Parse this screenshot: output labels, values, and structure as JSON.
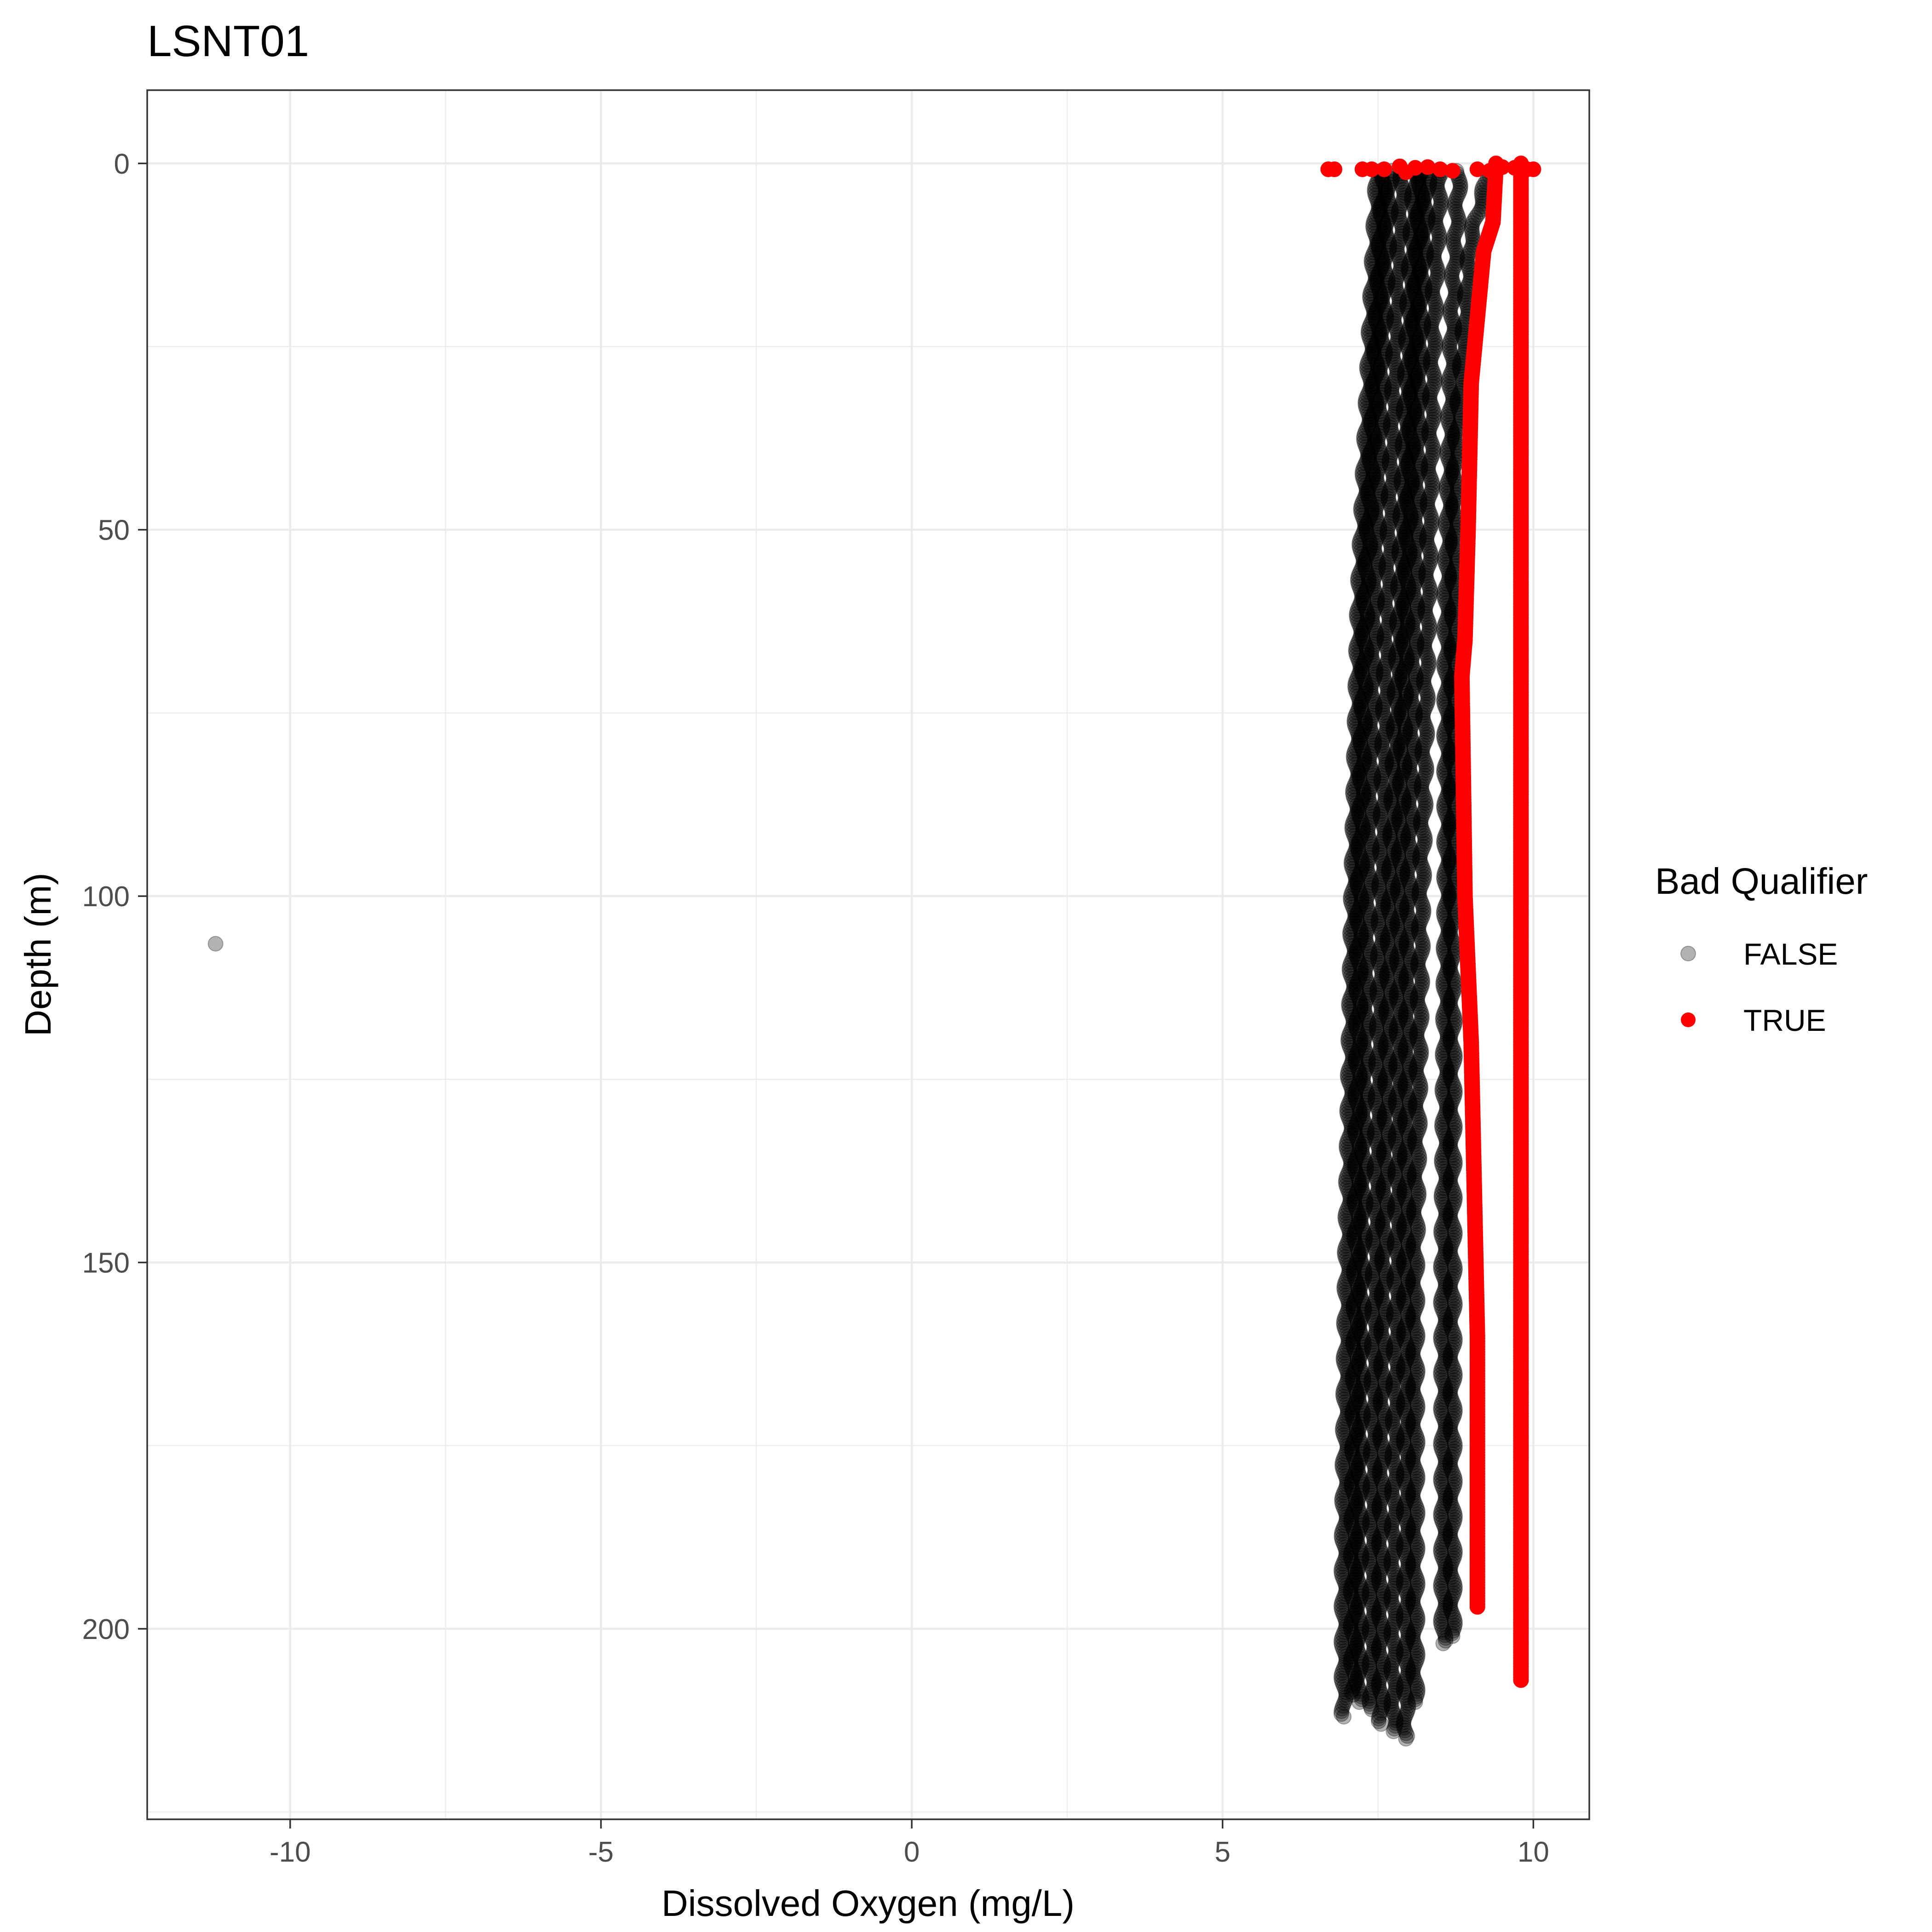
{
  "chart_data": {
    "type": "scatter",
    "title": "LSNT01",
    "xlabel": "Dissolved Oxygen (mg/L)",
    "ylabel": "Depth (m)",
    "xlim": [
      -12.3,
      10.9
    ],
    "ylim": [
      -10,
      226
    ],
    "y_reversed": true,
    "grid": true,
    "x_ticks": [
      -10,
      -5,
      0,
      5,
      10
    ],
    "x_tick_labels": [
      "-10",
      "-5",
      "0",
      "5",
      "10"
    ],
    "y_ticks": [
      0,
      50,
      100,
      150,
      200
    ],
    "y_tick_labels": [
      "0",
      "50",
      "100",
      "150",
      "200"
    ],
    "legend": {
      "title": "Bad Qualifier",
      "position": "right",
      "entries": [
        {
          "label": "FALSE",
          "color": "#000000",
          "opacity": 0.3
        },
        {
          "label": "TRUE",
          "color": "#ff0000",
          "opacity": 1.0
        }
      ]
    },
    "series": [
      {
        "name": "FALSE",
        "color": "#000000",
        "opacity": 0.3,
        "profiles": [
          {
            "x": [
              7.5,
              7.4,
              7.2,
              7.1,
              7.0,
              6.95,
              6.95
            ],
            "y": [
              1,
              20,
              60,
              100,
              150,
              190,
              212
            ]
          },
          {
            "x": [
              7.6,
              7.5,
              7.3,
              7.2,
              7.15,
              7.1,
              7.1
            ],
            "y": [
              1,
              20,
              60,
              100,
              150,
              190,
              209
            ]
          },
          {
            "x": [
              7.7,
              7.6,
              7.45,
              7.35,
              7.25,
              7.2,
              7.2
            ],
            "y": [
              1,
              20,
              60,
              100,
              150,
              190,
              210
            ]
          },
          {
            "x": [
              7.9,
              7.8,
              7.65,
              7.55,
              7.45,
              7.4,
              7.4
            ],
            "y": [
              1,
              20,
              60,
              100,
              150,
              190,
              211
            ]
          },
          {
            "x": [
              8.1,
              8.0,
              7.85,
              7.7,
              7.6,
              7.55,
              7.55
            ],
            "y": [
              1,
              20,
              60,
              100,
              150,
              190,
              213
            ]
          },
          {
            "x": [
              8.2,
              8.1,
              7.95,
              7.85,
              7.8,
              7.75,
              7.75
            ],
            "y": [
              1,
              20,
              60,
              100,
              150,
              190,
              214
            ]
          },
          {
            "x": [
              8.3,
              8.2,
              8.1,
              8.0,
              7.95,
              7.95,
              7.95
            ],
            "y": [
              1,
              20,
              60,
              100,
              150,
              190,
              215
            ]
          },
          {
            "x": [
              8.5,
              8.4,
              8.3,
              8.2,
              8.1,
              8.1,
              8.1
            ],
            "y": [
              1,
              20,
              60,
              100,
              150,
              190,
              210
            ]
          },
          {
            "x": [
              8.8,
              8.7,
              8.6,
              8.6,
              8.55,
              8.55,
              8.55
            ],
            "y": [
              1,
              20,
              60,
              100,
              150,
              190,
              202
            ]
          },
          {
            "x": [
              9.3,
              9.0,
              8.75,
              8.7,
              8.7,
              8.7,
              8.7
            ],
            "y": [
              1,
              10,
              40,
              80,
              150,
              190,
              201
            ]
          }
        ],
        "points": [
          {
            "x": -11.2,
            "y": 106.5
          }
        ]
      },
      {
        "name": "TRUE",
        "color": "#ff0000",
        "opacity": 1.0,
        "profiles": [
          {
            "x": [
              9.4,
              9.35,
              9.2,
              9.0,
              8.95,
              8.9,
              8.85,
              8.9,
              9.0,
              9.05,
              9.1,
              9.1,
              9.1
            ],
            "y": [
              0,
              8,
              12,
              30,
              50,
              65,
              70,
              100,
              120,
              140,
              160,
              180,
              197
            ]
          },
          {
            "x": [
              9.8,
              9.8,
              9.8,
              9.8,
              9.8
            ],
            "y": [
              0,
              50,
              100,
              150,
              207
            ]
          }
        ],
        "points": [
          {
            "x": 6.7,
            "y": 0.8
          },
          {
            "x": 6.8,
            "y": 0.8
          },
          {
            "x": 7.25,
            "y": 0.8
          },
          {
            "x": 7.4,
            "y": 0.8
          },
          {
            "x": 7.6,
            "y": 0.8
          },
          {
            "x": 7.85,
            "y": 0.4
          },
          {
            "x": 7.95,
            "y": 1.2
          },
          {
            "x": 8.1,
            "y": 0.6
          },
          {
            "x": 8.3,
            "y": 0.5
          },
          {
            "x": 8.5,
            "y": 0.8
          },
          {
            "x": 8.7,
            "y": 1.0
          },
          {
            "x": 9.1,
            "y": 0.8
          },
          {
            "x": 9.3,
            "y": 1.0
          },
          {
            "x": 9.5,
            "y": 0.5
          },
          {
            "x": 9.7,
            "y": 0.6
          },
          {
            "x": 9.9,
            "y": 0.8
          },
          {
            "x": 10.0,
            "y": 0.8
          }
        ]
      }
    ]
  }
}
